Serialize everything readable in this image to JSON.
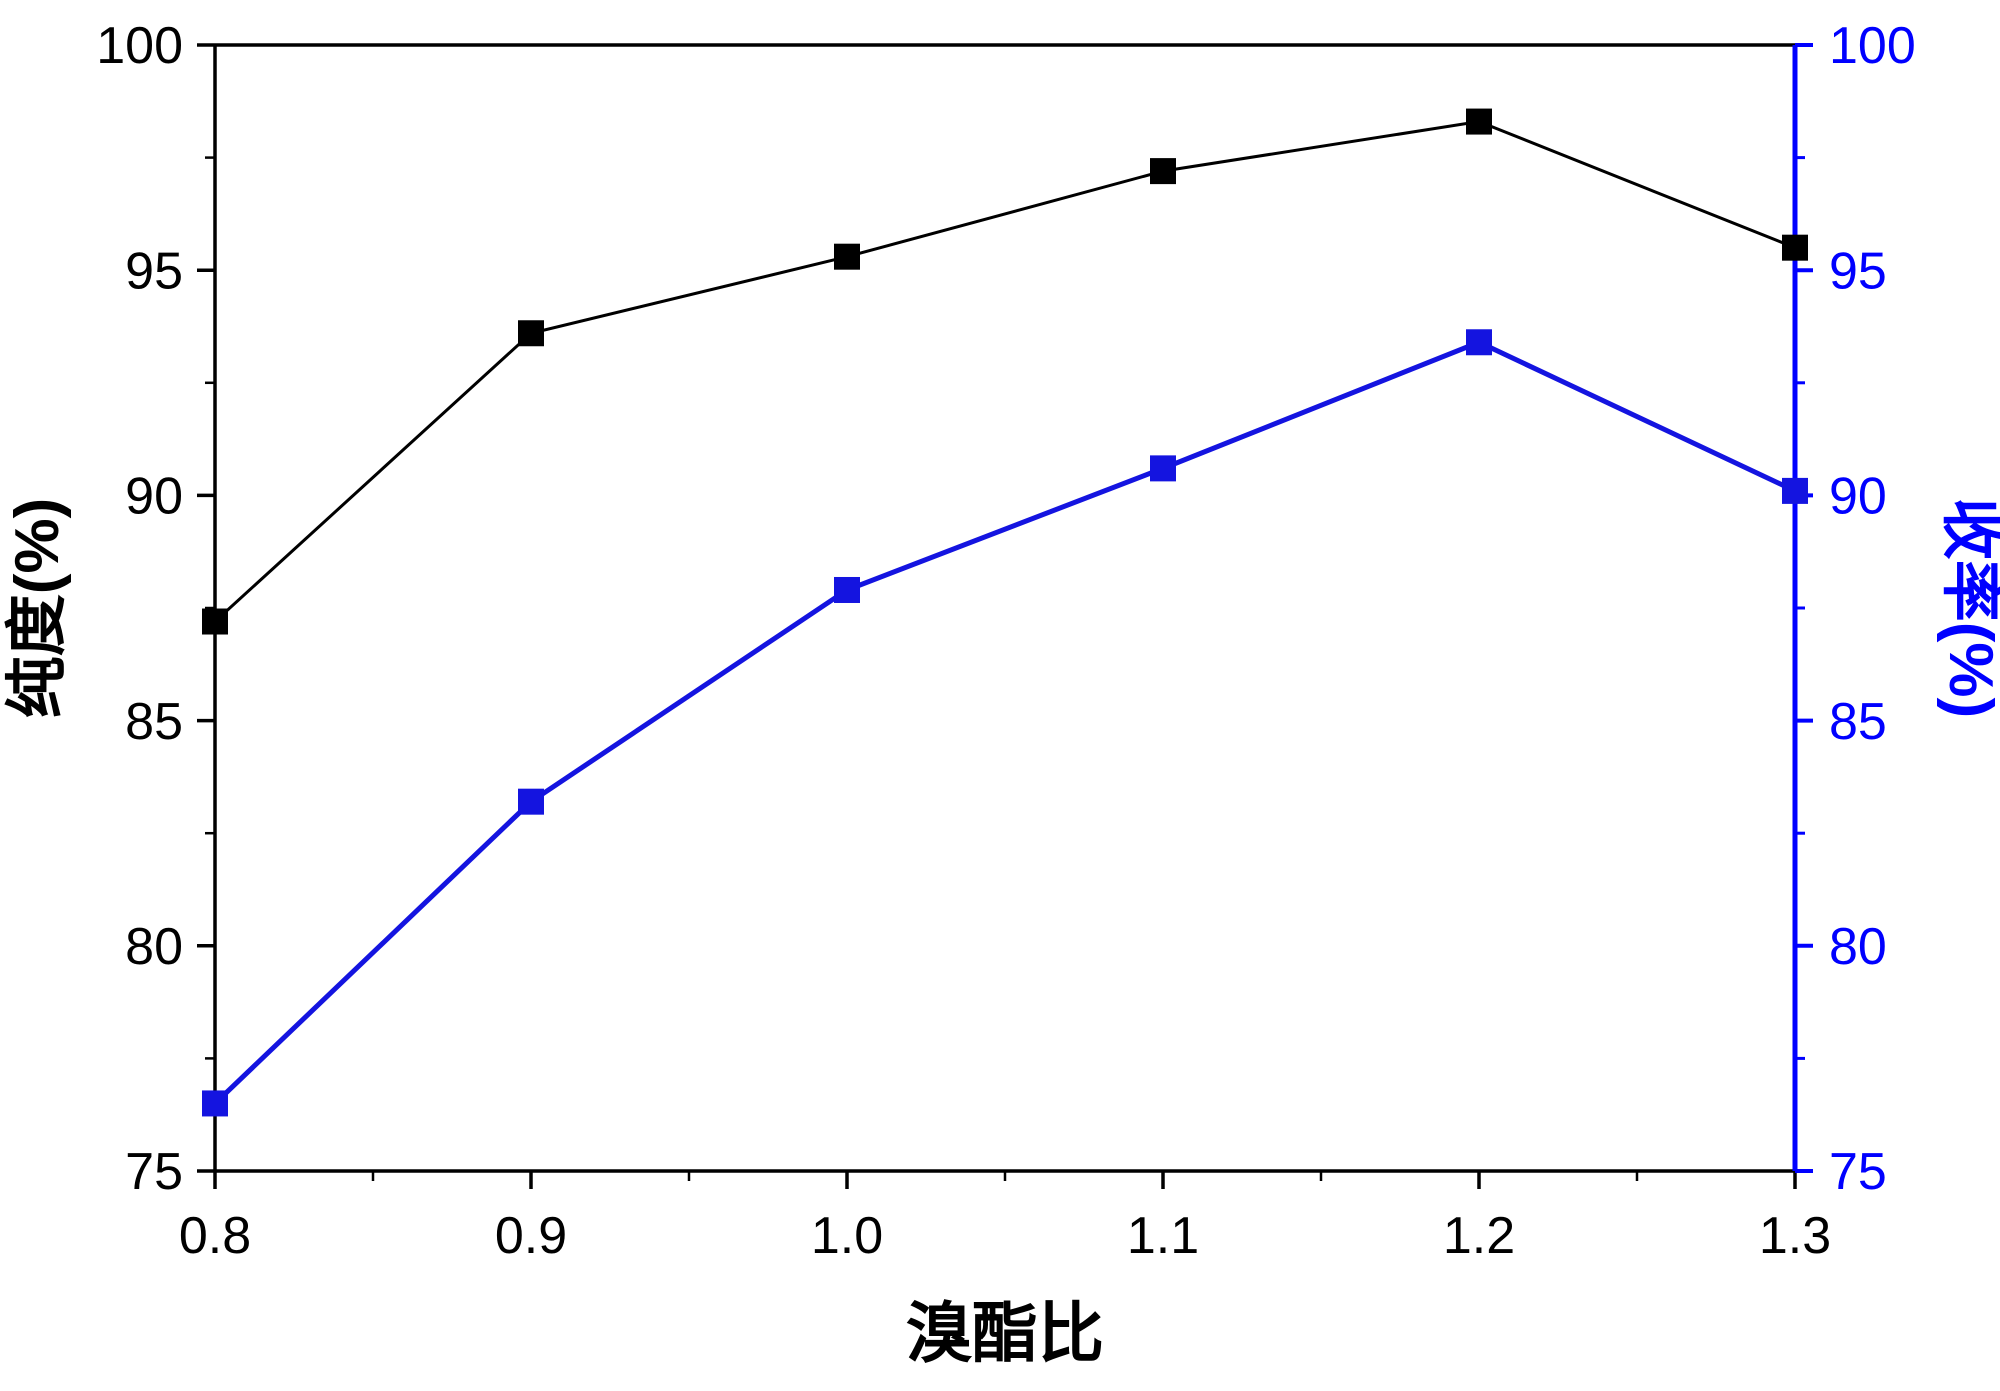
{
  "chart_data": {
    "type": "line",
    "x": [
      0.8,
      0.9,
      1.0,
      1.1,
      1.2,
      1.3
    ],
    "series": [
      {
        "name": "纯度",
        "axis": "left",
        "color": "#000000",
        "marker": "square",
        "marker_size": 26,
        "line_width": 3,
        "values": [
          87.2,
          93.6,
          95.3,
          97.2,
          98.3,
          95.5
        ]
      },
      {
        "name": "收率",
        "axis": "right",
        "color": "#1414e0",
        "marker": "square",
        "marker_size": 26,
        "line_width": 5,
        "values": [
          76.5,
          83.2,
          87.9,
          90.6,
          93.4,
          90.1
        ]
      }
    ],
    "xlabel": "溴酯比",
    "ylabel_left": "纯度(%)",
    "ylabel_right": "收率(%)",
    "xlim": [
      0.8,
      1.3
    ],
    "ylim_left": [
      75,
      100
    ],
    "ylim_right": [
      75,
      100
    ],
    "x_ticks": [
      "0.8",
      "0.9",
      "1.0",
      "1.1",
      "1.2",
      "1.3"
    ],
    "y_ticks_left": [
      "75",
      "80",
      "85",
      "90",
      "95",
      "100"
    ],
    "y_ticks_right": [
      "75",
      "80",
      "85",
      "90",
      "95",
      "100"
    ],
    "axis_color_left": "#000000",
    "axis_color_right": "#0000ff",
    "background": "#ffffff",
    "grid": false,
    "legend": "none"
  }
}
